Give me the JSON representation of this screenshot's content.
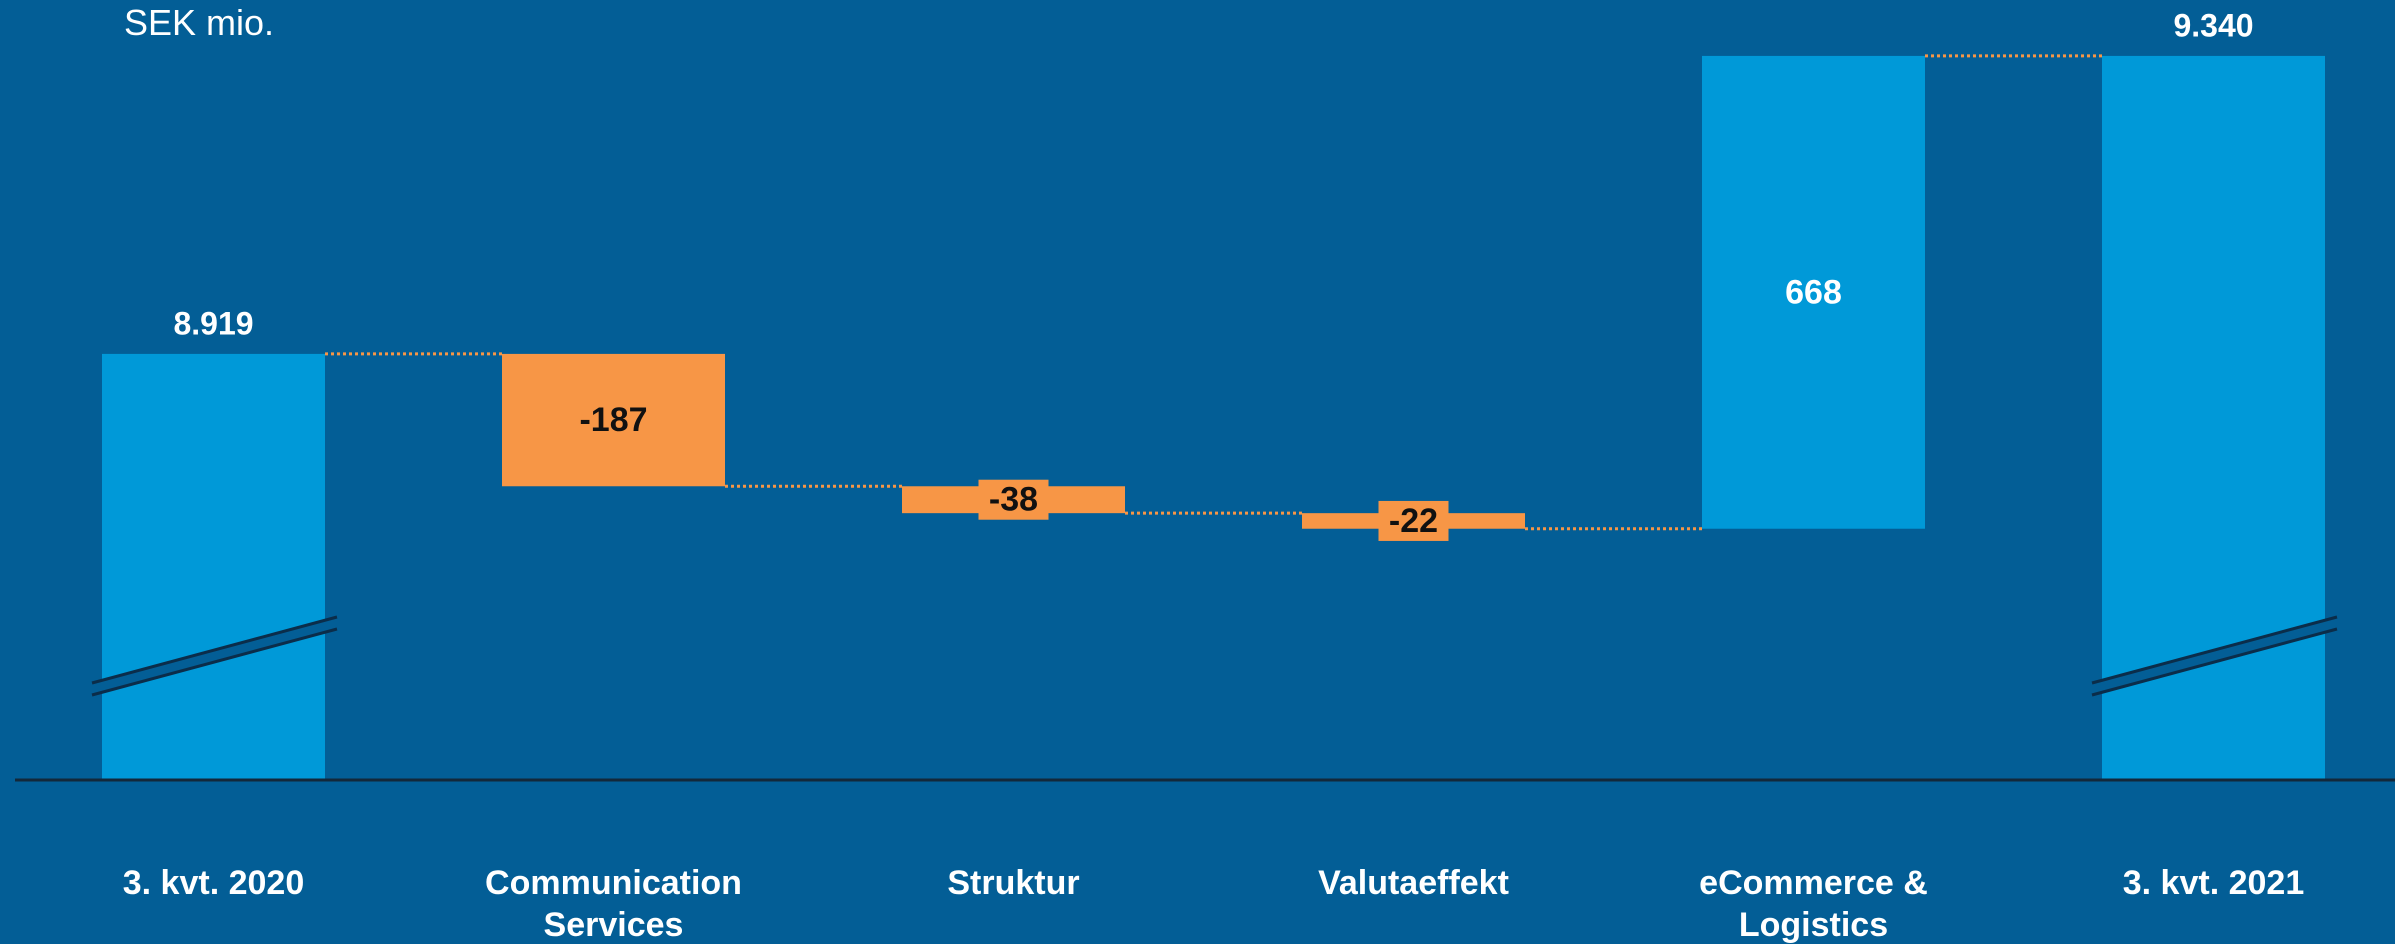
{
  "chart_data": {
    "type": "waterfall",
    "unit_label": "SEK mio.",
    "categories": [
      "3. kvt. 2020",
      "Communication Services",
      "Struktur",
      "Valutaeffekt",
      "eCommerce & Logistics",
      "3. kvt. 2021"
    ],
    "values": [
      8919,
      -187,
      -38,
      -22,
      668,
      9340
    ],
    "value_labels": [
      "8.919",
      "-187",
      "-38",
      "-22",
      "668",
      "9.340"
    ],
    "is_total": [
      true,
      false,
      false,
      false,
      false,
      true
    ],
    "colors": {
      "total": "#0099d8",
      "increase": "#0099d8",
      "decrease": "#f79646"
    },
    "ylim": [
      8317,
      9419
    ],
    "axis_break": true
  }
}
